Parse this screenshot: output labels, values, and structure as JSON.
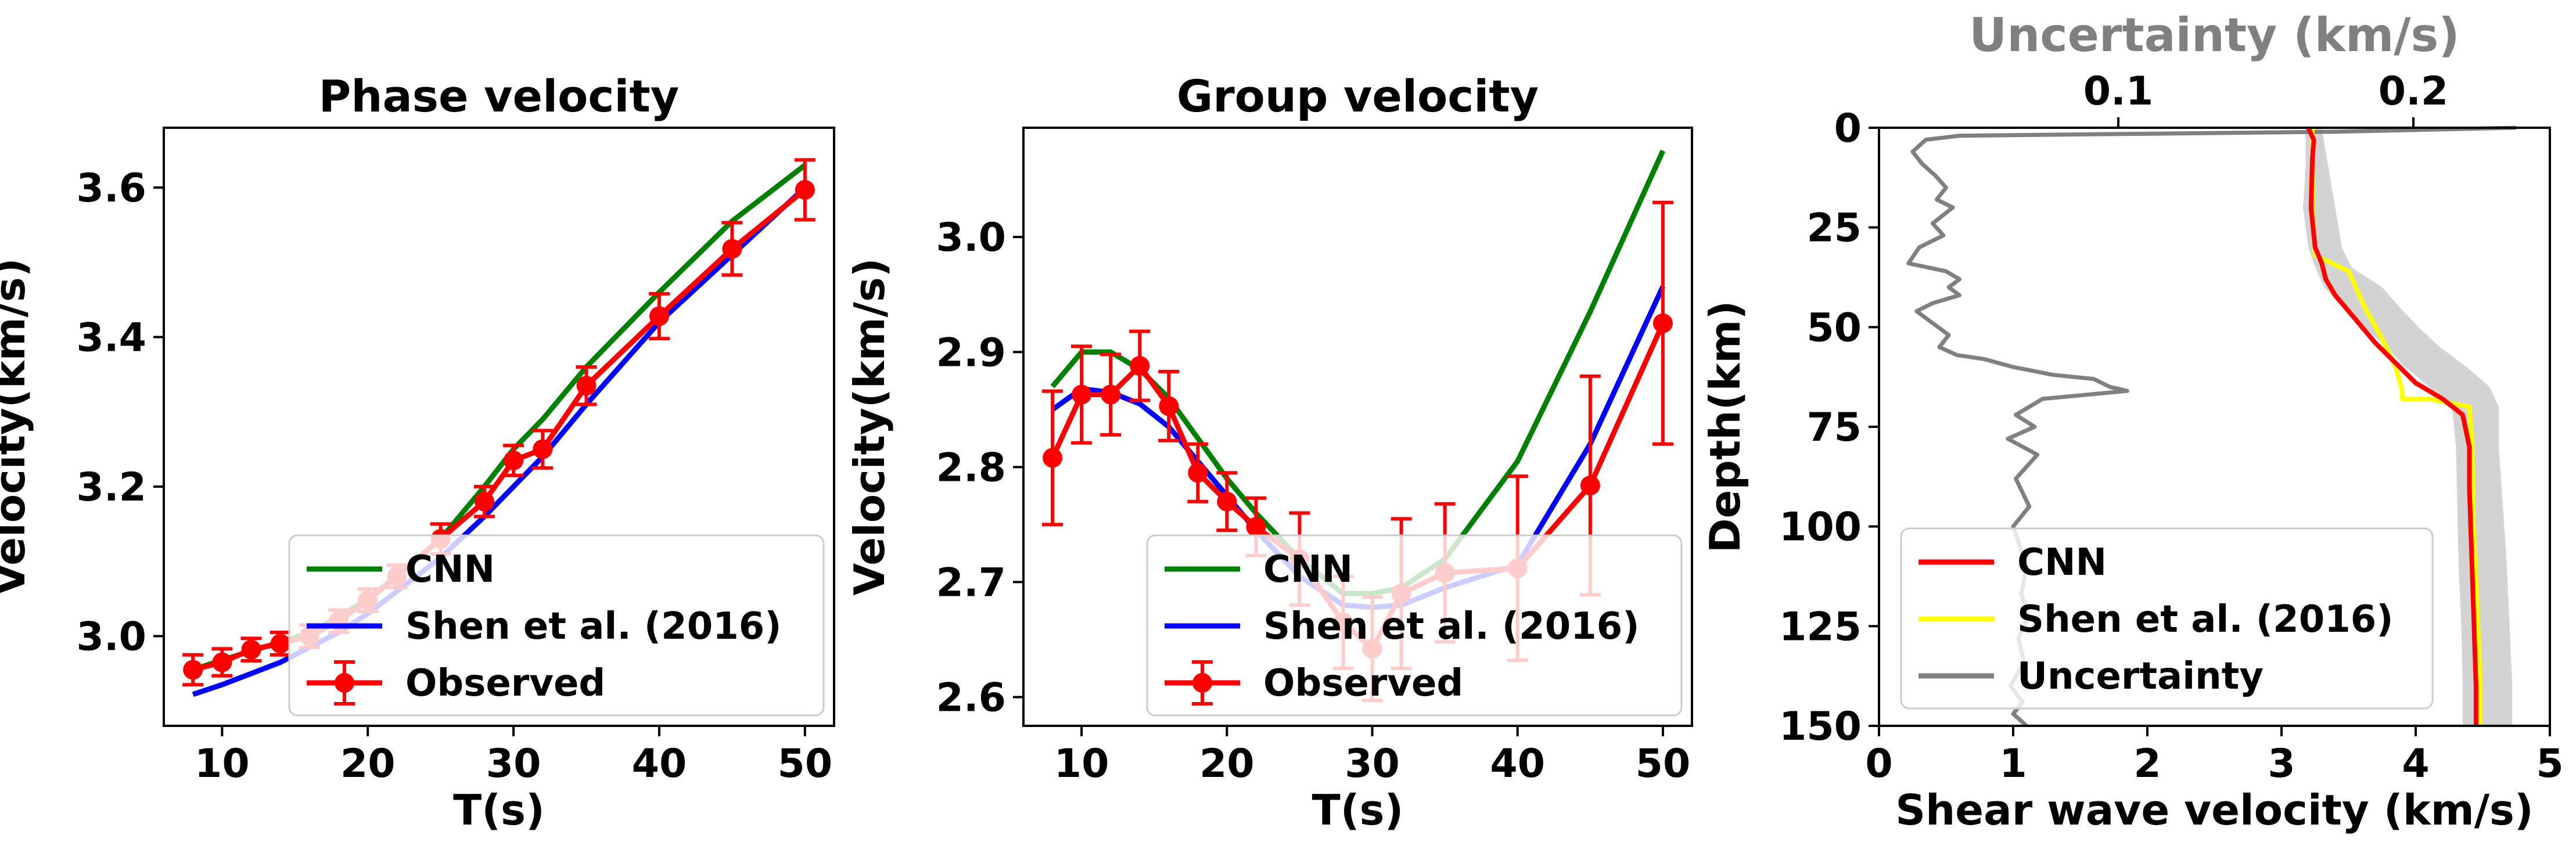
{
  "chart_data": [
    {
      "type": "line",
      "title": "Phase velocity",
      "xlabel": "T(s)",
      "ylabel": "Velocity(km/s)",
      "xlim": [
        6,
        52
      ],
      "ylim": [
        2.88,
        3.68
      ],
      "xticks": [
        "10",
        "20",
        "30",
        "40",
        "50"
      ],
      "yticks": [
        "3.0",
        "3.2",
        "3.4",
        "3.6"
      ],
      "legend_position": "lower-right",
      "series": [
        {
          "name": "CNN",
          "color": "#008000",
          "x": [
            8,
            10,
            12,
            14,
            16,
            18,
            20,
            22,
            25,
            28,
            30,
            32,
            35,
            40,
            45,
            50
          ],
          "y": [
            2.955,
            2.968,
            2.98,
            2.992,
            3.005,
            3.025,
            3.05,
            3.08,
            3.13,
            3.2,
            3.25,
            3.29,
            3.36,
            3.46,
            3.555,
            3.63
          ]
        },
        {
          "name": "Shen et al. (2016)",
          "color": "#0000ff",
          "x": [
            8,
            10,
            12,
            14,
            16,
            18,
            20,
            22,
            25,
            28,
            30,
            32,
            35,
            40,
            45,
            50
          ],
          "y": [
            2.922,
            2.935,
            2.95,
            2.965,
            2.985,
            3.005,
            3.03,
            3.06,
            3.105,
            3.16,
            3.2,
            3.24,
            3.31,
            3.42,
            3.51,
            3.6
          ]
        },
        {
          "name": "Observed",
          "color": "#ff0000",
          "x": [
            8,
            10,
            12,
            14,
            16,
            18,
            20,
            22,
            25,
            28,
            30,
            32,
            35,
            40,
            45,
            50
          ],
          "y": [
            2.955,
            2.965,
            2.982,
            2.99,
            3.0,
            3.02,
            3.048,
            3.08,
            3.13,
            3.18,
            3.235,
            3.25,
            3.335,
            3.428,
            3.518,
            3.597
          ],
          "err": [
            0.02,
            0.018,
            0.015,
            0.015,
            0.015,
            0.015,
            0.015,
            0.015,
            0.02,
            0.02,
            0.02,
            0.025,
            0.025,
            0.03,
            0.035,
            0.04
          ]
        }
      ]
    },
    {
      "type": "line",
      "title": "Group velocity",
      "xlabel": "T(s)",
      "ylabel": "Velocity(km/s)",
      "xlim": [
        6,
        52
      ],
      "ylim": [
        2.575,
        3.095
      ],
      "xticks": [
        "10",
        "20",
        "30",
        "40",
        "50"
      ],
      "yticks": [
        "2.6",
        "2.7",
        "2.8",
        "2.9",
        "3.0"
      ],
      "legend_position": "lower-right",
      "series": [
        {
          "name": "CNN",
          "color": "#008000",
          "x": [
            8,
            10,
            12,
            14,
            16,
            18,
            20,
            22,
            25,
            28,
            30,
            32,
            35,
            40,
            45,
            50
          ],
          "y": [
            2.87,
            2.9,
            2.9,
            2.885,
            2.86,
            2.825,
            2.79,
            2.76,
            2.72,
            2.69,
            2.69,
            2.695,
            2.72,
            2.805,
            2.935,
            3.075
          ]
        },
        {
          "name": "Shen et al. (2016)",
          "color": "#0000ff",
          "x": [
            8,
            10,
            12,
            14,
            16,
            18,
            20,
            22,
            25,
            28,
            30,
            32,
            35,
            40,
            45,
            50
          ],
          "y": [
            2.85,
            2.868,
            2.865,
            2.855,
            2.835,
            2.805,
            2.775,
            2.745,
            2.705,
            2.68,
            2.678,
            2.68,
            2.695,
            2.715,
            2.82,
            2.957
          ]
        },
        {
          "name": "Observed",
          "color": "#ff0000",
          "x": [
            8,
            10,
            12,
            14,
            16,
            18,
            20,
            22,
            25,
            28,
            30,
            32,
            35,
            40,
            45,
            50
          ],
          "y": [
            2.808,
            2.863,
            2.863,
            2.888,
            2.853,
            2.795,
            2.77,
            2.748,
            2.72,
            2.665,
            2.642,
            2.69,
            2.708,
            2.712,
            2.784,
            2.925
          ],
          "err": [
            0.058,
            0.042,
            0.035,
            0.03,
            0.03,
            0.025,
            0.025,
            0.025,
            0.04,
            0.04,
            0.045,
            0.065,
            0.06,
            0.08,
            0.095,
            0.105
          ]
        }
      ]
    },
    {
      "type": "line",
      "xlabel": "Shear wave velocity (km/s)",
      "ylabel": "Depth(km)",
      "xlim": [
        0,
        5
      ],
      "ylim": [
        150,
        0
      ],
      "xticks": [
        "0",
        "1",
        "2",
        "3",
        "4",
        "5"
      ],
      "yticks": [
        "0",
        "25",
        "50",
        "75",
        "100",
        "125",
        "150"
      ],
      "top_axis": {
        "label": "Uncertainty (km/s)",
        "ticks": [
          "0.1",
          "0.2"
        ],
        "color": "#808080"
      },
      "legend_position": "lower-left",
      "series": [
        {
          "name": "CNN",
          "color": "#ff0000",
          "x": [
            3.2,
            3.24,
            3.23,
            3.22,
            3.25,
            3.3,
            3.33,
            3.4,
            3.55,
            3.7,
            3.85,
            4.0,
            4.2,
            4.35,
            4.4,
            4.4,
            4.41,
            4.42,
            4.43,
            4.44,
            4.45,
            4.45
          ],
          "y": [
            0,
            3,
            8,
            20,
            30,
            34,
            38,
            42,
            48,
            54,
            59,
            64,
            68,
            72,
            80,
            90,
            100,
            110,
            120,
            130,
            140,
            150
          ]
        },
        {
          "name": "Shen et al. (2016)",
          "color": "#ffff00",
          "x": [
            3.23,
            3.23,
            3.23,
            3.23,
            3.25,
            3.5,
            3.62,
            3.75,
            3.85,
            3.9,
            3.9,
            4.1,
            4.4,
            4.42,
            4.43,
            4.45,
            4.47,
            4.48,
            4.48
          ],
          "y": [
            0,
            3,
            10,
            20,
            32,
            36,
            45,
            53,
            60,
            66,
            68,
            68,
            70,
            80,
            100,
            115,
            130,
            140,
            150
          ]
        },
        {
          "name": "Uncertainty",
          "color": "#808080",
          "x": [
            4.75,
            3.4,
            0.6,
            0.35,
            0.25,
            0.32,
            0.42,
            0.5,
            0.43,
            0.55,
            0.4,
            0.48,
            0.3,
            0.22,
            0.5,
            0.6,
            0.52,
            0.6,
            0.4,
            0.28,
            0.4,
            0.52,
            0.45,
            0.58,
            0.78,
            1.0,
            1.3,
            1.6,
            1.72,
            1.85,
            1.22,
            1.02,
            1.16,
            0.96,
            1.18,
            1.02,
            1.12,
            1.0,
            1.1,
            1.06,
            1.12,
            1.04,
            1.08,
            0.98,
            1.07,
            1.0,
            1.1
          ],
          "y": [
            0,
            1,
            2,
            3,
            6,
            9,
            12,
            15,
            18,
            20,
            24,
            27,
            30,
            34,
            36,
            38,
            40,
            42,
            44,
            46,
            49,
            52,
            55,
            57,
            58,
            60,
            62,
            63,
            65,
            66,
            68,
            72,
            75,
            78,
            82,
            88,
            95,
            100,
            110,
            117,
            122,
            128,
            134,
            140,
            144,
            147,
            150
          ]
        },
        {
          "name": "Uncertainty band",
          "color": "#d3d3d3",
          "x_low": [
            3.18,
            3.18,
            3.16,
            3.2,
            3.25,
            3.32,
            3.45,
            3.62,
            3.78,
            3.92,
            4.1,
            4.27,
            4.3,
            4.31,
            4.32,
            4.34,
            4.35,
            4.35
          ],
          "x_high": [
            3.3,
            3.35,
            3.4,
            3.45,
            3.52,
            3.75,
            3.88,
            4.02,
            4.18,
            4.38,
            4.55,
            4.62,
            4.62,
            4.65,
            4.68,
            4.7,
            4.72,
            4.72
          ],
          "y": [
            0,
            10,
            20,
            30,
            35,
            40,
            45,
            50,
            55,
            60,
            65,
            70,
            80,
            95,
            110,
            125,
            140,
            150
          ]
        }
      ]
    }
  ]
}
